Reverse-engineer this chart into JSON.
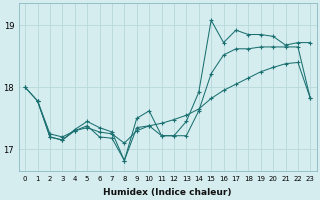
{
  "xlabel": "Humidex (Indice chaleur)",
  "bg_color": "#d6edf0",
  "grid_color": "#b8d8dc",
  "line_color": "#1a7070",
  "xlim": [
    -0.5,
    23.5
  ],
  "ylim": [
    16.65,
    19.35
  ],
  "yticks": [
    17,
    18,
    19
  ],
  "xticks": [
    0,
    1,
    2,
    3,
    4,
    5,
    6,
    7,
    8,
    9,
    10,
    11,
    12,
    13,
    14,
    15,
    16,
    17,
    18,
    19,
    20,
    21,
    22,
    23
  ],
  "series": [
    {
      "x": [
        0,
        1,
        2,
        3,
        4,
        5,
        6,
        7,
        8,
        9,
        10,
        11,
        12,
        13,
        14,
        15,
        16,
        17,
        18,
        19,
        20,
        21,
        22,
        23
      ],
      "y": [
        18.0,
        17.78,
        17.25,
        17.2,
        17.3,
        17.35,
        17.28,
        17.25,
        17.1,
        17.3,
        17.38,
        17.42,
        17.48,
        17.55,
        17.65,
        17.82,
        17.95,
        18.05,
        18.15,
        18.25,
        18.32,
        18.38,
        18.4,
        17.82
      ]
    },
    {
      "x": [
        0,
        1,
        2,
        3,
        4,
        5,
        6,
        7,
        8,
        9,
        10,
        11,
        12,
        13,
        14,
        15,
        16,
        17,
        18,
        19,
        20,
        21,
        22,
        23
      ],
      "y": [
        18.0,
        17.78,
        17.2,
        17.15,
        17.3,
        17.38,
        17.2,
        17.18,
        16.82,
        17.35,
        17.38,
        17.22,
        17.22,
        17.22,
        17.62,
        18.22,
        18.52,
        18.62,
        18.62,
        18.65,
        18.65,
        18.65,
        18.65,
        17.82
      ]
    },
    {
      "x": [
        1,
        2,
        3,
        4,
        5,
        6,
        7,
        8,
        9,
        10,
        11,
        12,
        13,
        14,
        15,
        16,
        17,
        18,
        19,
        20,
        21,
        22,
        23
      ],
      "y": [
        17.78,
        17.2,
        17.15,
        17.32,
        17.45,
        17.35,
        17.28,
        16.82,
        17.5,
        17.62,
        17.22,
        17.22,
        17.45,
        17.92,
        19.08,
        18.72,
        18.92,
        18.85,
        18.85,
        18.82,
        18.68,
        18.72,
        18.72
      ]
    }
  ]
}
